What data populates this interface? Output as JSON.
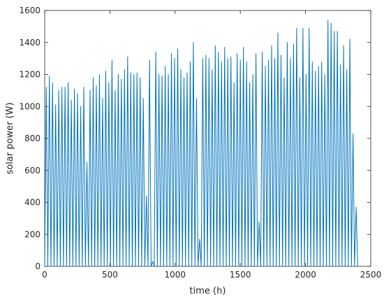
{
  "chart_data": {
    "type": "line",
    "xlabel": "time (h)",
    "ylabel": "solar power (W)",
    "xlim": [
      0,
      2500
    ],
    "xticks": [
      0,
      500,
      1000,
      1500,
      2000,
      2500
    ],
    "ylim": [
      0,
      1600
    ],
    "yticks": [
      0,
      200,
      400,
      600,
      800,
      1000,
      1200,
      1400,
      1600
    ],
    "grid": false,
    "x": [
      0,
      12,
      24,
      36,
      48,
      60,
      72,
      84,
      96,
      108,
      120,
      132,
      144,
      156,
      168,
      180,
      192,
      204,
      216,
      228,
      240,
      252,
      264,
      276,
      288,
      300,
      312,
      324,
      336,
      348,
      360,
      372,
      384,
      396,
      408,
      420,
      432,
      444,
      456,
      468,
      480,
      492,
      504,
      516,
      528,
      540,
      552,
      564,
      576,
      588,
      600,
      612,
      624,
      636,
      648,
      660,
      672,
      684,
      696,
      708,
      720,
      732,
      744,
      756,
      768,
      780,
      792,
      804,
      816,
      828,
      840,
      852,
      864,
      876,
      888,
      900,
      912,
      924,
      936,
      948,
      960,
      972,
      984,
      996,
      1008,
      1020,
      1032,
      1044,
      1056,
      1068,
      1080,
      1092,
      1104,
      1116,
      1128,
      1140,
      1152,
      1164,
      1176,
      1188,
      1200,
      1212,
      1224,
      1236,
      1248,
      1260,
      1272,
      1284,
      1296,
      1308,
      1320,
      1332,
      1344,
      1356,
      1368,
      1380,
      1392,
      1404,
      1416,
      1428,
      1440,
      1452,
      1464,
      1476,
      1488,
      1500,
      1512,
      1524,
      1536,
      1548,
      1560,
      1572,
      1584,
      1596,
      1608,
      1620,
      1632,
      1644,
      1656,
      1668,
      1680,
      1692,
      1704,
      1716,
      1728,
      1740,
      1752,
      1764,
      1776,
      1788,
      1800,
      1812,
      1824,
      1836,
      1848,
      1860,
      1872,
      1884,
      1896,
      1908,
      1920,
      1932,
      1944,
      1956,
      1968,
      1980,
      1992,
      2004,
      2016,
      2028,
      2040,
      2052,
      2064,
      2076,
      2088,
      2100,
      2112,
      2124,
      2136,
      2148,
      2160,
      2172,
      2184,
      2196,
      2208,
      2220,
      2232,
      2244,
      2256,
      2268,
      2280,
      2292,
      2304,
      2316,
      2328,
      2340,
      2352,
      2364,
      2376,
      2388,
      2400
    ],
    "series": [
      {
        "color": "#0072bd",
        "values": [
          0,
          1120,
          0,
          1190,
          0,
          1150,
          0,
          1010,
          0,
          1100,
          0,
          1120,
          0,
          1120,
          0,
          1150,
          0,
          1040,
          0,
          1110,
          0,
          1080,
          0,
          1000,
          0,
          1120,
          0,
          650,
          0,
          1100,
          0,
          1180,
          0,
          1130,
          0,
          1200,
          0,
          1050,
          0,
          1220,
          0,
          1150,
          0,
          1290,
          0,
          1100,
          0,
          1200,
          0,
          1170,
          0,
          1230,
          0,
          1310,
          0,
          1210,
          0,
          1200,
          0,
          1210,
          0,
          1180,
          0,
          1050,
          0,
          440,
          0,
          1290,
          0,
          30,
          0,
          1340,
          0,
          1200,
          0,
          1190,
          0,
          1250,
          0,
          1200,
          0,
          1330,
          0,
          1300,
          0,
          1360,
          0,
          1230,
          0,
          1180,
          0,
          1210,
          0,
          1280,
          0,
          1400,
          0,
          1050,
          0,
          170,
          0,
          1300,
          0,
          1320,
          0,
          1300,
          0,
          1230,
          0,
          1380,
          0,
          1340,
          0,
          1280,
          0,
          1370,
          0,
          1300,
          0,
          1310,
          0,
          1150,
          0,
          1330,
          0,
          1290,
          0,
          1370,
          0,
          1280,
          0,
          1150,
          0,
          1200,
          0,
          1330,
          0,
          280,
          0,
          1340,
          0,
          1250,
          0,
          1290,
          0,
          1380,
          0,
          1300,
          0,
          1460,
          0,
          1320,
          0,
          1180,
          0,
          1400,
          0,
          1300,
          0,
          1390,
          0,
          1490,
          0,
          1180,
          0,
          1490,
          0,
          1200,
          0,
          1490,
          0,
          1280,
          0,
          1220,
          0,
          1250,
          0,
          1280,
          0,
          1200,
          0,
          1540,
          0,
          1520,
          0,
          1470,
          0,
          1470,
          0,
          1260,
          0,
          1380,
          0,
          1230,
          0,
          1420,
          0,
          830,
          0,
          370,
          0
        ]
      }
    ]
  }
}
